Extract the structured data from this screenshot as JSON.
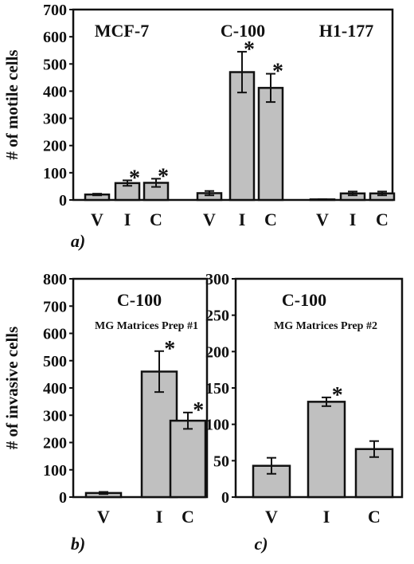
{
  "chart_data": [
    {
      "type": "bar",
      "panel_label": "a)",
      "ylabel": "# of motile cells",
      "ylim": [
        0,
        700
      ],
      "yticks": [
        0,
        100,
        200,
        300,
        400,
        500,
        600,
        700
      ],
      "bar_color": "#c0c0c0",
      "groups": [
        {
          "title": "MCF-7",
          "categories": [
            "V",
            "I",
            "C"
          ],
          "values": [
            20,
            62,
            63
          ],
          "errors": [
            3,
            10,
            15
          ],
          "significant": [
            false,
            true,
            true
          ]
        },
        {
          "title": "C-100",
          "categories": [
            "V",
            "I",
            "C"
          ],
          "values": [
            25,
            470,
            412
          ],
          "errors": [
            8,
            75,
            52
          ],
          "significant": [
            false,
            true,
            true
          ]
        },
        {
          "title": "H1-177",
          "categories": [
            "V",
            "I",
            "C"
          ],
          "values": [
            2,
            24,
            24
          ],
          "errors": [
            1,
            7,
            7
          ],
          "significant": [
            false,
            false,
            false
          ]
        }
      ]
    },
    {
      "type": "bar",
      "panel_label": "b)",
      "ylabel": "# of invasive cells",
      "title": "C-100",
      "subtitle": "MG Matrices Prep #1",
      "ylim": [
        0,
        800
      ],
      "yticks": [
        0,
        100,
        200,
        300,
        400,
        500,
        600,
        700,
        800
      ],
      "bar_color": "#c0c0c0",
      "categories": [
        "V",
        "I",
        "C"
      ],
      "values": [
        15,
        460,
        280
      ],
      "errors": [
        4,
        75,
        30
      ],
      "significant": [
        false,
        true,
        true
      ]
    },
    {
      "type": "bar",
      "panel_label": "c)",
      "ylabel": "",
      "title": "C-100",
      "subtitle": "MG Matrices Prep #2",
      "ylim": [
        0,
        300
      ],
      "yticks": [
        0,
        50,
        100,
        150,
        200,
        250,
        300
      ],
      "bar_color": "#c0c0c0",
      "categories": [
        "V",
        "I",
        "C"
      ],
      "values": [
        43,
        131,
        66
      ],
      "errors": [
        11,
        6,
        11
      ],
      "significant": [
        false,
        true,
        false
      ]
    }
  ],
  "significance_marker": "*"
}
